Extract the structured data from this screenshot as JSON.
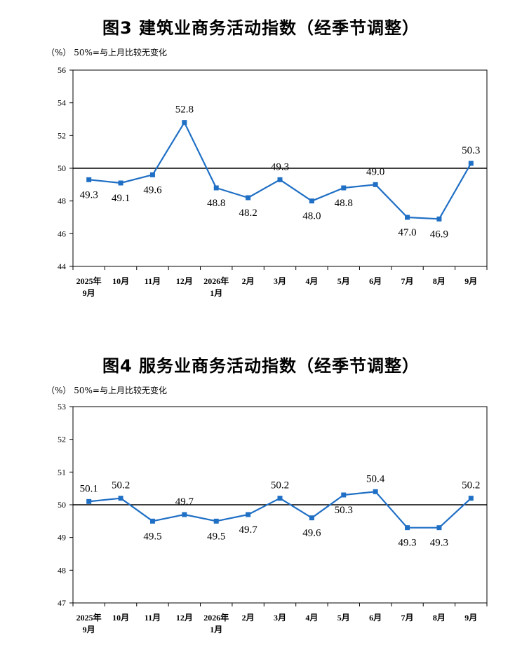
{
  "colors": {
    "series": "#1f6fc5",
    "axis": "#000000",
    "baseline": "#000000"
  },
  "chart_data": [
    {
      "type": "line",
      "title": "图3  建筑业商务活动指数（经季节调整）",
      "note": "（%）  50%=与上月比较无变化",
      "categories": [
        "2025年\n9月",
        "10月",
        "11月",
        "12月",
        "2026年\n1月",
        "2月",
        "3月",
        "4月",
        "5月",
        "6月",
        "7月",
        "8月",
        "9月"
      ],
      "series": [
        {
          "values": [
            49.3,
            49.1,
            49.6,
            52.8,
            48.8,
            48.2,
            49.3,
            48.0,
            48.8,
            49.0,
            47.0,
            46.9,
            50.3
          ]
        }
      ],
      "data_labels": [
        "49.3",
        "49.1",
        "49.6",
        "52.8",
        "48.8",
        "48.2",
        "49.3",
        "48.0",
        "48.8",
        "49.0",
        "47.0",
        "46.9",
        "50.3"
      ],
      "ylim": [
        44,
        56
      ],
      "yticks": [
        "44",
        "46",
        "48",
        "50",
        "52",
        "54",
        "56"
      ],
      "baseline": 50,
      "grid": false
    },
    {
      "type": "line",
      "title": "图4  服务业商务活动指数（经季节调整）",
      "note": "（%）  50%=与上月比较无变化",
      "categories": [
        "2025年\n9月",
        "10月",
        "11月",
        "12月",
        "2026年\n1月",
        "2月",
        "3月",
        "4月",
        "5月",
        "6月",
        "7月",
        "8月",
        "9月"
      ],
      "series": [
        {
          "values": [
            50.1,
            50.2,
            49.5,
            49.7,
            49.5,
            49.7,
            50.2,
            49.6,
            50.3,
            50.4,
            49.3,
            49.3,
            50.2
          ]
        }
      ],
      "data_labels": [
        "50.1",
        "50.2",
        "49.5",
        "49.7",
        "49.5",
        "49.7",
        "50.2",
        "49.6",
        "50.3",
        "50.4",
        "49.3",
        "49.3",
        "50.2"
      ],
      "ylim": [
        47,
        53
      ],
      "yticks": [
        "47",
        "48",
        "49",
        "50",
        "51",
        "52",
        "53"
      ],
      "baseline": 50,
      "grid": false
    }
  ]
}
